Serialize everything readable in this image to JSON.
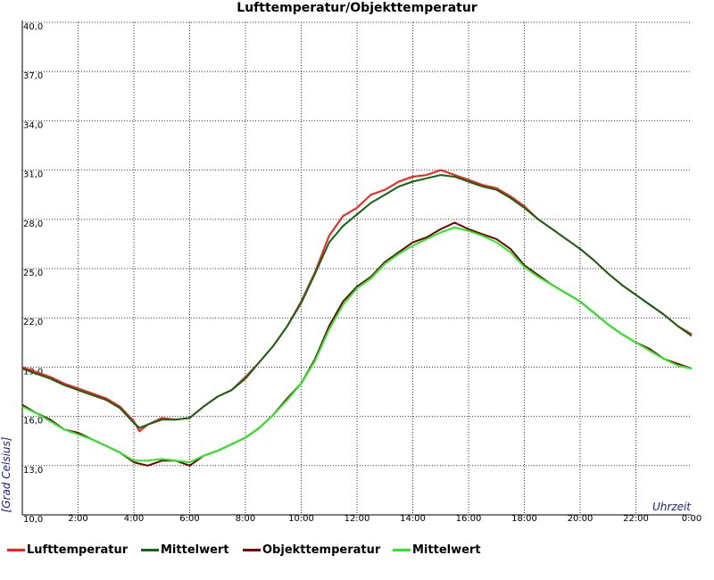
{
  "chart_data": {
    "type": "line",
    "title": "Lufttemperatur/Objekttemperatur",
    "xlabel": "Uhrzeit",
    "ylabel": "[Grad Celsius]",
    "ylim": [
      10.0,
      40.0
    ],
    "y_ticks": [
      "10,0",
      "13,0",
      "16,0",
      "19,0",
      "22,0",
      "25,0",
      "28,0",
      "31,0",
      "34,0",
      "37,0",
      "40,0"
    ],
    "x_ticks": [
      "2:00",
      "4:00",
      "6:00",
      "8:00",
      "10:00",
      "12:00",
      "14:00",
      "16:00",
      "18:00",
      "20:00",
      "22:00",
      "0:00"
    ],
    "xlim_hours": [
      0,
      24
    ],
    "grid": true,
    "legend_position": "bottom",
    "series": [
      {
        "name": "Lufttemperatur",
        "color": "#ff1a1a",
        "x": [
          0,
          0.5,
          1,
          1.5,
          2,
          2.5,
          3,
          3.5,
          4,
          4.2,
          4.5,
          5,
          5.5,
          6,
          6.5,
          7,
          7.5,
          8,
          8.5,
          9,
          9.5,
          10,
          10.5,
          11,
          11.5,
          12,
          12.5,
          13,
          13.5,
          14,
          14.5,
          15,
          15.5,
          16,
          16.5,
          17,
          17.5,
          18,
          18.5,
          19,
          19.5,
          20,
          20.5,
          21,
          21.5,
          22,
          22.5,
          23,
          23.5,
          24
        ],
        "y": [
          19.0,
          18.7,
          18.4,
          18.0,
          17.7,
          17.4,
          17.1,
          16.6,
          15.7,
          15.1,
          15.5,
          15.9,
          15.8,
          15.9,
          16.6,
          17.2,
          17.6,
          18.4,
          19.3,
          20.3,
          21.5,
          23.0,
          24.8,
          27.0,
          28.2,
          28.7,
          29.5,
          29.8,
          30.3,
          30.6,
          30.7,
          31.0,
          30.7,
          30.4,
          30.1,
          29.9,
          29.4,
          28.8,
          28.0,
          27.4,
          26.8,
          26.2,
          25.5,
          24.7,
          24.0,
          23.4,
          22.8,
          22.2,
          21.5,
          21.0
        ]
      },
      {
        "name": "Mittelwert",
        "color": "#116611",
        "x": [
          0,
          0.5,
          1,
          1.5,
          2,
          2.5,
          3,
          3.5,
          4,
          4.2,
          4.5,
          5,
          5.5,
          6,
          6.5,
          7,
          7.5,
          8,
          8.5,
          9,
          9.5,
          10,
          10.5,
          11,
          11.5,
          12,
          12.5,
          13,
          13.5,
          14,
          14.5,
          15,
          15.5,
          16,
          16.5,
          17,
          17.5,
          18,
          18.5,
          19,
          19.5,
          20,
          20.5,
          21,
          21.5,
          22,
          22.5,
          23,
          23.5,
          24
        ],
        "y": [
          18.9,
          18.6,
          18.3,
          17.9,
          17.6,
          17.3,
          17.0,
          16.5,
          15.6,
          15.3,
          15.5,
          15.8,
          15.8,
          15.9,
          16.6,
          17.2,
          17.6,
          18.3,
          19.3,
          20.3,
          21.5,
          22.9,
          24.7,
          26.6,
          27.6,
          28.3,
          29.0,
          29.5,
          30.0,
          30.3,
          30.5,
          30.7,
          30.6,
          30.3,
          30.0,
          29.8,
          29.3,
          28.7,
          28.0,
          27.4,
          26.8,
          26.2,
          25.5,
          24.7,
          24.0,
          23.4,
          22.8,
          22.2,
          21.5,
          20.9
        ]
      },
      {
        "name": "Objekttemperatur",
        "color": "#7a0000",
        "x": [
          0,
          0.5,
          1,
          1.5,
          2,
          2.5,
          3,
          3.5,
          4,
          4.5,
          5,
          5.5,
          6,
          6.5,
          7,
          7.5,
          8,
          8.5,
          9,
          9.5,
          10,
          10.5,
          11,
          11.5,
          12,
          12.5,
          13,
          13.5,
          14,
          14.5,
          15,
          15.5,
          16,
          16.5,
          17,
          17.5,
          18,
          18.5,
          19,
          19.5,
          20,
          20.5,
          21,
          21.5,
          22,
          22.5,
          23,
          23.5,
          24
        ],
        "y": [
          16.7,
          16.2,
          15.8,
          15.2,
          15.0,
          14.6,
          14.2,
          13.8,
          13.2,
          13.0,
          13.3,
          13.3,
          13.0,
          13.6,
          13.9,
          14.3,
          14.7,
          15.3,
          16.1,
          17.1,
          18.0,
          19.5,
          21.5,
          23.0,
          23.9,
          24.5,
          25.4,
          26.0,
          26.6,
          26.9,
          27.4,
          27.8,
          27.4,
          27.1,
          26.8,
          26.2,
          25.2,
          24.6,
          24.0,
          23.5,
          23.0,
          22.3,
          21.6,
          21.0,
          20.5,
          20.1,
          19.5,
          19.2,
          18.9
        ]
      },
      {
        "name": "Mittelwert",
        "color": "#22ee22",
        "x": [
          0,
          0.5,
          1,
          1.5,
          2,
          2.5,
          3,
          3.5,
          4,
          4.5,
          5,
          5.5,
          6,
          6.5,
          7,
          7.5,
          8,
          8.5,
          9,
          9.5,
          10,
          10.5,
          11,
          11.5,
          12,
          12.5,
          13,
          13.5,
          14,
          14.5,
          15,
          15.5,
          16,
          16.5,
          17,
          17.5,
          18,
          18.5,
          19,
          19.5,
          20,
          20.5,
          21,
          21.5,
          22,
          22.5,
          23,
          23.5,
          24
        ],
        "y": [
          16.6,
          16.2,
          15.7,
          15.2,
          14.9,
          14.6,
          14.2,
          13.8,
          13.3,
          13.3,
          13.4,
          13.3,
          13.2,
          13.6,
          13.9,
          14.3,
          14.7,
          15.3,
          16.1,
          17.0,
          18.0,
          19.4,
          21.3,
          22.8,
          23.8,
          24.4,
          25.3,
          25.9,
          26.4,
          26.8,
          27.2,
          27.5,
          27.3,
          27.0,
          26.6,
          26.0,
          25.1,
          24.5,
          24.0,
          23.5,
          23.0,
          22.3,
          21.6,
          21.0,
          20.5,
          20.0,
          19.5,
          19.1,
          18.9
        ]
      }
    ]
  }
}
